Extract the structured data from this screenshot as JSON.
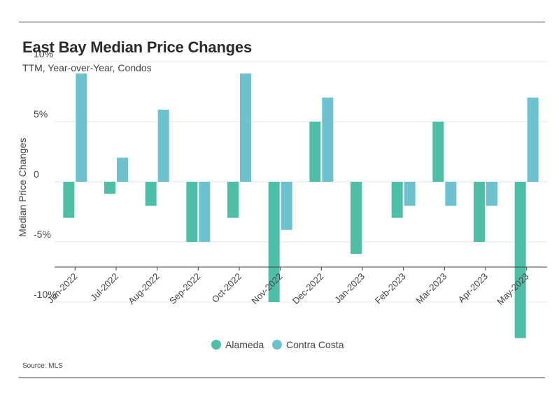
{
  "title": "East Bay Median Price Changes",
  "subtitle": "TTM, Year-over-Year, Condos",
  "source": "Source: MLS",
  "colors": {
    "Alameda": "#4dbfa6",
    "Contra Costa": "#6cc3cf"
  },
  "chart_data": {
    "type": "bar",
    "title": "East Bay Median Price Changes",
    "subtitle": "TTM, Year-over-Year, Condos",
    "xlabel": "",
    "ylabel": "Median Price Changes",
    "ylim": [
      -15,
      10
    ],
    "y_ticks": [
      10,
      5,
      0,
      -5,
      -10
    ],
    "y_tick_labels": [
      "10%",
      "5%",
      "0",
      "-5%",
      "-10%"
    ],
    "grid": true,
    "legend_position": "bottom",
    "categories": [
      "Jun-2022",
      "Jul-2022",
      "Aug-2022",
      "Sep-2022",
      "Oct-2022",
      "Nov-2022",
      "Dec-2022",
      "Jan-2023",
      "Feb-2023",
      "Mar-2023",
      "Apr-2023",
      "May-2023"
    ],
    "series": [
      {
        "name": "Alameda",
        "values": [
          -3,
          -1,
          -2,
          -5,
          -3,
          -10,
          5,
          -6,
          -3,
          5,
          -5,
          -13
        ]
      },
      {
        "name": "Contra Costa",
        "values": [
          9,
          2,
          6,
          -5,
          9,
          -4,
          7,
          null,
          -2,
          -2,
          -2,
          7
        ]
      }
    ]
  }
}
